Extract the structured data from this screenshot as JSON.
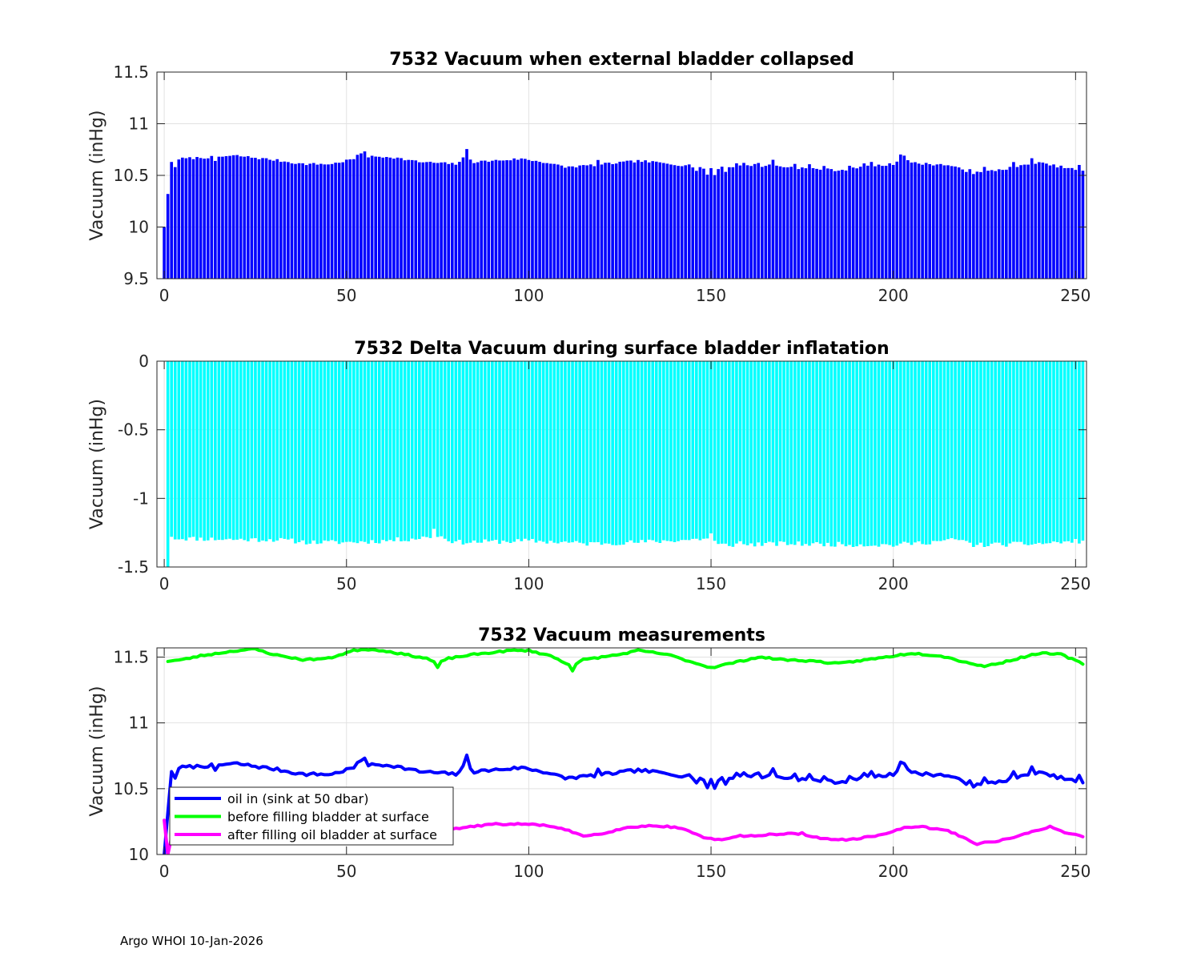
{
  "footer": "Argo WHOI 10-Jan-2026",
  "colors": {
    "bars_top": "#0000ff",
    "bars_mid": "#00ffff",
    "line_oil_in": "#0000ff",
    "line_before": "#00ff00",
    "line_after": "#ff00ff",
    "grid": "#e2e2e2",
    "axis": "#262626"
  },
  "chart_data": [
    {
      "id": "collapsed",
      "type": "bar",
      "title": "7532 Vacuum when external bladder collapsed",
      "xlabel": "",
      "ylabel": "Vacuum (inHg)",
      "xlim": [
        -2,
        253
      ],
      "ylim": [
        9.5,
        11.5
      ],
      "xticks": [
        0,
        50,
        100,
        150,
        200,
        250
      ],
      "yticks": [
        9.5,
        10,
        10.5,
        11,
        11.5
      ],
      "ytick_labels": [
        "9.5",
        "10",
        "10.5",
        "11",
        "11.5"
      ],
      "grid": true,
      "generator": {
        "x_range": [
          0,
          252
        ],
        "special_points": [
          [
            0,
            10.0
          ],
          [
            1,
            10.32
          ],
          [
            2,
            10.63
          ],
          [
            3,
            10.58
          ]
        ],
        "anchors": [
          [
            4,
            10.66
          ],
          [
            20,
            10.69
          ],
          [
            30,
            10.65
          ],
          [
            38,
            10.61
          ],
          [
            46,
            10.61
          ],
          [
            52,
            10.66
          ],
          [
            55,
            10.74
          ],
          [
            56,
            10.68
          ],
          [
            62,
            10.68
          ],
          [
            70,
            10.63
          ],
          [
            80,
            10.61
          ],
          [
            83,
            10.69
          ],
          [
            85,
            10.63
          ],
          [
            98,
            10.66
          ],
          [
            104,
            10.63
          ],
          [
            110,
            10.58
          ],
          [
            118,
            10.6
          ],
          [
            130,
            10.64
          ],
          [
            140,
            10.61
          ],
          [
            145,
            10.58
          ],
          [
            150,
            10.55
          ],
          [
            160,
            10.6
          ],
          [
            165,
            10.6
          ],
          [
            175,
            10.57
          ],
          [
            185,
            10.55
          ],
          [
            195,
            10.59
          ],
          [
            200,
            10.61
          ],
          [
            203,
            10.69
          ],
          [
            205,
            10.62
          ],
          [
            215,
            10.6
          ],
          [
            222,
            10.52
          ],
          [
            230,
            10.56
          ],
          [
            240,
            10.62
          ],
          [
            248,
            10.57
          ],
          [
            252,
            10.54
          ]
        ],
        "bumps": [
          [
            14,
            -0.05
          ],
          [
            83,
            0.06
          ],
          [
            119,
            0.04
          ],
          [
            144,
            0.03
          ],
          [
            146,
            -0.03
          ],
          [
            148,
            0.01
          ],
          [
            149,
            -0.05
          ],
          [
            150,
            0.02
          ],
          [
            151,
            -0.05
          ],
          [
            153,
            0.03
          ],
          [
            154,
            -0.04
          ],
          [
            155,
            0.01
          ],
          [
            157,
            0.04
          ],
          [
            159,
            0.02
          ],
          [
            163,
            0.03
          ],
          [
            164,
            -0.02
          ],
          [
            167,
            0.06
          ],
          [
            173,
            0.04
          ],
          [
            177,
            0.04
          ],
          [
            181,
            0.04
          ],
          [
            188,
            0.03
          ],
          [
            192,
            0.05
          ],
          [
            194,
            0.05
          ],
          [
            202,
            0.05
          ],
          [
            221,
            0.04
          ],
          [
            225,
            0.04
          ],
          [
            233,
            0.05
          ],
          [
            238,
            0.07
          ],
          [
            251,
            0.05
          ]
        ],
        "noise": 0.012,
        "seed": 7
      }
    },
    {
      "id": "delta",
      "type": "bar",
      "title": "7532 Delta Vacuum during surface bladder inflatation",
      "xlabel": "",
      "ylabel": "Vacuum (inHg)",
      "xlim": [
        -2,
        253
      ],
      "ylim": [
        -1.5,
        0
      ],
      "baseline": 0,
      "xticks": [
        0,
        50,
        100,
        150,
        200,
        250
      ],
      "yticks": [
        -1.5,
        -1,
        -0.5,
        0
      ],
      "ytick_labels": [
        "-1.5",
        "-1",
        "-0.5",
        "0"
      ],
      "grid": true,
      "generator": {
        "x_range": [
          1,
          252
        ],
        "special_points": [
          [
            1,
            -1.5
          ],
          [
            2,
            -1.28
          ]
        ],
        "anchors": [
          [
            3,
            -1.29
          ],
          [
            20,
            -1.3
          ],
          [
            30,
            -1.3
          ],
          [
            40,
            -1.32
          ],
          [
            50,
            -1.32
          ],
          [
            60,
            -1.31
          ],
          [
            70,
            -1.29
          ],
          [
            75,
            -1.27
          ],
          [
            80,
            -1.32
          ],
          [
            100,
            -1.31
          ],
          [
            110,
            -1.32
          ],
          [
            115,
            -1.33
          ],
          [
            130,
            -1.32
          ],
          [
            145,
            -1.3
          ],
          [
            150,
            -1.29
          ],
          [
            152,
            -1.34
          ],
          [
            170,
            -1.33
          ],
          [
            200,
            -1.34
          ],
          [
            218,
            -1.3
          ],
          [
            222,
            -1.34
          ],
          [
            240,
            -1.33
          ],
          [
            252,
            -1.31
          ]
        ],
        "bumps": [
          [
            74,
            0.05
          ],
          [
            150,
            0.03
          ],
          [
            158,
            0.02
          ]
        ],
        "noise": 0.018,
        "seed": 11
      }
    },
    {
      "id": "measurements",
      "type": "line",
      "title": "7532 Vacuum measurements",
      "xlabel": "",
      "ylabel": "Vacuum (inHg)",
      "xlim": [
        -2,
        253
      ],
      "ylim": [
        10,
        11.57
      ],
      "xticks": [
        0,
        50,
        100,
        150,
        200,
        250
      ],
      "yticks": [
        10,
        10.5,
        11,
        11.5
      ],
      "ytick_labels": [
        "10",
        "10.5",
        "11",
        "11.5"
      ],
      "grid": true,
      "legend": "bottom-left",
      "series": [
        {
          "name": "oil in (sink at 50 dbar)",
          "color_key": "line_oil_in",
          "same_as": "collapsed"
        },
        {
          "name": "before filling bladder at surface",
          "color_key": "line_before",
          "generator": {
            "x_range": [
              1,
              252
            ],
            "anchors": [
              [
                1,
                11.47
              ],
              [
                5,
                11.48
              ],
              [
                10,
                11.51
              ],
              [
                20,
                11.55
              ],
              [
                25,
                11.56
              ],
              [
                30,
                11.52
              ],
              [
                38,
                11.48
              ],
              [
                45,
                11.49
              ],
              [
                52,
                11.55
              ],
              [
                55,
                11.56
              ],
              [
                60,
                11.55
              ],
              [
                66,
                11.52
              ],
              [
                72,
                11.49
              ],
              [
                75,
                11.45
              ],
              [
                78,
                11.49
              ],
              [
                85,
                11.52
              ],
              [
                95,
                11.55
              ],
              [
                100,
                11.55
              ],
              [
                106,
                11.51
              ],
              [
                112,
                11.43
              ],
              [
                115,
                11.48
              ],
              [
                125,
                11.52
              ],
              [
                130,
                11.55
              ],
              [
                138,
                11.52
              ],
              [
                145,
                11.46
              ],
              [
                150,
                11.42
              ],
              [
                155,
                11.45
              ],
              [
                163,
                11.5
              ],
              [
                170,
                11.48
              ],
              [
                178,
                11.47
              ],
              [
                185,
                11.45
              ],
              [
                190,
                11.47
              ],
              [
                198,
                11.5
              ],
              [
                205,
                11.53
              ],
              [
                213,
                11.51
              ],
              [
                220,
                11.46
              ],
              [
                225,
                11.43
              ],
              [
                230,
                11.46
              ],
              [
                240,
                11.53
              ],
              [
                246,
                11.52
              ],
              [
                252,
                11.45
              ]
            ],
            "bumps": [
              [
                75,
                -0.03
              ],
              [
                112,
                -0.03
              ]
            ],
            "noise": 0.006,
            "seed": 23
          }
        },
        {
          "name": "after filling oil bladder at surface",
          "color_key": "line_after",
          "generator": {
            "x_range": [
              0,
              252
            ],
            "special_points": [
              [
                0,
                10.26
              ],
              [
                1,
                10.0
              ],
              [
                2,
                10.13
              ]
            ],
            "anchors": [
              [
                3,
                10.15
              ],
              [
                20,
                10.17
              ],
              [
                50,
                10.19
              ],
              [
                75,
                10.18
              ],
              [
                90,
                10.23
              ],
              [
                100,
                10.23
              ],
              [
                105,
                10.22
              ],
              [
                111,
                10.18
              ],
              [
                115,
                10.14
              ],
              [
                120,
                10.16
              ],
              [
                128,
                10.21
              ],
              [
                135,
                10.22
              ],
              [
                142,
                10.2
              ],
              [
                148,
                10.13
              ],
              [
                152,
                10.11
              ],
              [
                158,
                10.14
              ],
              [
                165,
                10.15
              ],
              [
                175,
                10.16
              ],
              [
                180,
                10.12
              ],
              [
                188,
                10.11
              ],
              [
                195,
                10.14
              ],
              [
                203,
                10.2
              ],
              [
                208,
                10.21
              ],
              [
                215,
                10.18
              ],
              [
                220,
                10.12
              ],
              [
                223,
                10.08
              ],
              [
                230,
                10.11
              ],
              [
                238,
                10.17
              ],
              [
                243,
                10.21
              ],
              [
                248,
                10.16
              ],
              [
                252,
                10.14
              ]
            ],
            "noise": 0.006,
            "seed": 31
          }
        }
      ]
    }
  ]
}
